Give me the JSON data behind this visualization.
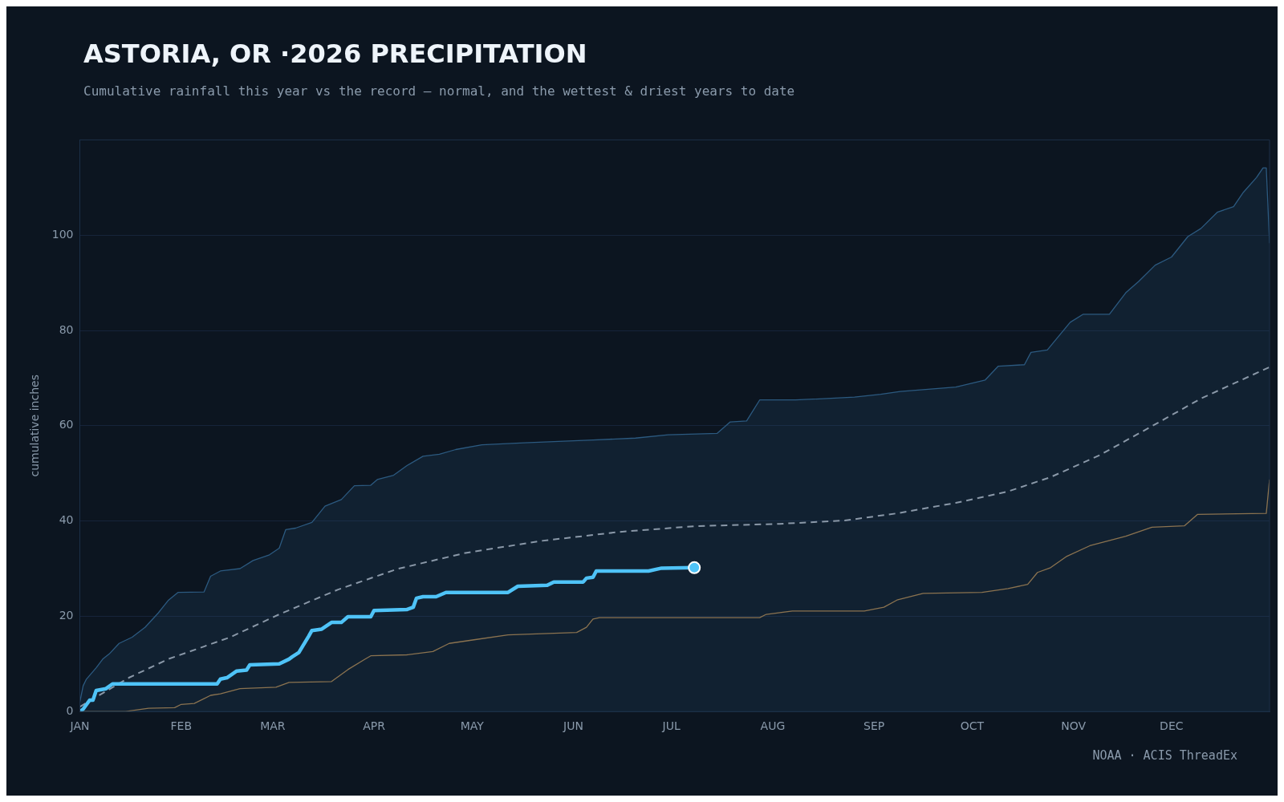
{
  "chart_data": {
    "type": "line",
    "title": "ASTORIA, OR ·2026 PRECIPITATION",
    "subtitle": "Cumulative rainfall this year vs the record — normal, and the wettest & driest years to date",
    "ylabel": "cumulative inches",
    "annotations": [
      "NOAA · ACIS ThreadEx"
    ],
    "xlim": [
      "2026-01-01",
      "2026-12-31"
    ],
    "xticks": [
      {
        "value": "2026-01-01",
        "label": "JAN"
      },
      {
        "value": "2026-02-01",
        "label": "FEB"
      },
      {
        "value": "2026-03-01",
        "label": "MAR"
      },
      {
        "value": "2026-04-01",
        "label": "APR"
      },
      {
        "value": "2026-05-01",
        "label": "MAY"
      },
      {
        "value": "2026-06-01",
        "label": "JUN"
      },
      {
        "value": "2026-07-01",
        "label": "JUL"
      },
      {
        "value": "2026-08-01",
        "label": "AUG"
      },
      {
        "value": "2026-09-01",
        "label": "SEP"
      },
      {
        "value": "2026-10-01",
        "label": "OCT"
      },
      {
        "value": "2026-11-01",
        "label": "NOV"
      },
      {
        "value": "2026-12-01",
        "label": "DEC"
      }
    ],
    "ylim": [
      0,
      120
    ],
    "yticks": [
      0,
      20,
      40,
      60,
      80,
      100
    ],
    "grid": "y",
    "legend": false,
    "marker": "none",
    "series": [
      {
        "type": "area",
        "color": "#2c5a80",
        "x": [
          "2026-01-01",
          "2026-01-02",
          "2026-01-03",
          "2026-01-06",
          "2026-01-08",
          "2026-01-10",
          "2026-01-13",
          "2026-01-17",
          "2026-01-21",
          "2026-01-25",
          "2026-01-28",
          "2026-01-31",
          "2026-02-08",
          "2026-02-10",
          "2026-02-13",
          "2026-02-19",
          "2026-02-23",
          "2026-02-28",
          "2026-03-03",
          "2026-03-05",
          "2026-03-08",
          "2026-03-13",
          "2026-03-17",
          "2026-03-22",
          "2026-03-26",
          "2026-03-31",
          "2026-04-02",
          "2026-04-07",
          "2026-04-11",
          "2026-04-16",
          "2026-04-21",
          "2026-04-26",
          "2026-05-04",
          "2026-05-17",
          "2026-06-07",
          "2026-06-20",
          "2026-06-30",
          "2026-07-15",
          "2026-07-19",
          "2026-07-24",
          "2026-07-28",
          "2026-08-08",
          "2026-08-26",
          "2026-09-03",
          "2026-09-09",
          "2026-09-26",
          "2026-10-05",
          "2026-10-09",
          "2026-10-17",
          "2026-10-19",
          "2026-10-24",
          "2026-10-31",
          "2026-11-04",
          "2026-11-12",
          "2026-11-17",
          "2026-11-21",
          "2026-11-26",
          "2026-12-01",
          "2026-12-06",
          "2026-12-10",
          "2026-12-15",
          "2026-12-20",
          "2026-12-23",
          "2026-12-27",
          "2026-12-29",
          "2026-12-30",
          "2026-12-31"
        ],
        "values": [
          2.0,
          5.4,
          6.8,
          9.2,
          11.0,
          12.1,
          14.3,
          15.6,
          17.7,
          20.7,
          23.3,
          25.0,
          25.1,
          28.4,
          29.5,
          30.0,
          31.7,
          32.9,
          34.3,
          38.2,
          38.5,
          39.7,
          43.1,
          44.5,
          47.4,
          47.5,
          48.7,
          49.6,
          51.6,
          53.6,
          54.0,
          55.0,
          56.0,
          56.4,
          57.0,
          57.4,
          58.1,
          58.4,
          60.8,
          61.0,
          65.4,
          65.4,
          66.0,
          66.6,
          67.2,
          68.1,
          69.6,
          72.5,
          72.8,
          75.4,
          75.9,
          81.7,
          83.4,
          83.4,
          87.9,
          90.3,
          93.7,
          95.4,
          99.7,
          101.4,
          104.8,
          106.0,
          109.0,
          112.1,
          114.1,
          114.1,
          98.3
        ]
      },
      {
        "type": "line",
        "color": "#8b7350",
        "x": [
          "2026-01-01",
          "2026-01-15",
          "2026-01-22",
          "2026-01-30",
          "2026-02-01",
          "2026-02-05",
          "2026-02-10",
          "2026-02-13",
          "2026-02-19",
          "2026-03-02",
          "2026-03-06",
          "2026-03-19",
          "2026-03-24",
          "2026-03-29",
          "2026-03-31",
          "2026-04-11",
          "2026-04-19",
          "2026-04-24",
          "2026-05-02",
          "2026-05-12",
          "2026-06-02",
          "2026-06-05",
          "2026-06-07",
          "2026-06-09",
          "2026-07-03",
          "2026-07-28",
          "2026-07-30",
          "2026-08-07",
          "2026-08-29",
          "2026-09-04",
          "2026-09-08",
          "2026-09-16",
          "2026-10-04",
          "2026-10-12",
          "2026-10-18",
          "2026-10-21",
          "2026-10-25",
          "2026-10-30",
          "2026-11-06",
          "2026-11-17",
          "2026-11-25",
          "2026-12-05",
          "2026-12-09",
          "2026-12-30",
          "2026-12-31"
        ],
        "values": [
          0,
          0,
          0.7,
          0.8,
          1.5,
          1.7,
          3.4,
          3.7,
          4.8,
          5.1,
          6.1,
          6.3,
          8.8,
          10.9,
          11.7,
          11.9,
          12.6,
          14.3,
          15.1,
          16.1,
          16.6,
          17.7,
          19.4,
          19.7,
          19.7,
          19.7,
          20.4,
          21.1,
          21.1,
          21.9,
          23.4,
          24.8,
          25.0,
          25.8,
          26.7,
          29.2,
          30.2,
          32.6,
          34.8,
          36.8,
          38.7,
          39.0,
          41.4,
          41.6,
          48.7
        ]
      },
      {
        "type": "line",
        "color": "#8a98a8",
        "line_style": "dashed",
        "x": [
          "2026-01-01",
          "2026-01-16",
          "2026-01-28",
          "2026-02-16",
          "2026-03-03",
          "2026-03-21",
          "2026-04-08",
          "2026-04-29",
          "2026-05-22",
          "2026-06-15",
          "2026-07-08",
          "2026-08-03",
          "2026-08-23",
          "2026-09-08",
          "2026-09-26",
          "2026-10-12",
          "2026-10-25",
          "2026-11-09",
          "2026-11-25",
          "2026-12-10",
          "2026-12-31"
        ],
        "values": [
          1,
          7.1,
          11.0,
          15.6,
          20.4,
          25.6,
          29.9,
          33.3,
          35.8,
          37.7,
          38.9,
          39.4,
          40.1,
          41.6,
          43.8,
          46.2,
          49.2,
          53.8,
          59.9,
          65.7,
          72.3
        ]
      },
      {
        "type": "line",
        "color": "#4fc3f7",
        "x": [
          "2026-01-01",
          "2026-01-02",
          "2026-01-04",
          "2026-01-05",
          "2026-01-06",
          "2026-01-09",
          "2026-01-11",
          "2026-02-12",
          "2026-02-13",
          "2026-02-15",
          "2026-02-18",
          "2026-02-21",
          "2026-02-22",
          "2026-03-03",
          "2026-03-06",
          "2026-03-07",
          "2026-03-09",
          "2026-03-12",
          "2026-03-13",
          "2026-03-16",
          "2026-03-19",
          "2026-03-22",
          "2026-03-24",
          "2026-03-31",
          "2026-04-01",
          "2026-04-11",
          "2026-04-13",
          "2026-04-14",
          "2026-04-16",
          "2026-04-20",
          "2026-04-23",
          "2026-05-12",
          "2026-05-15",
          "2026-05-24",
          "2026-05-26",
          "2026-06-04",
          "2026-06-05",
          "2026-06-07",
          "2026-06-08",
          "2026-06-24",
          "2026-06-28",
          "2026-07-08"
        ],
        "values": [
          0,
          0.5,
          2.4,
          2.4,
          4.4,
          4.8,
          5.8,
          5.8,
          6.8,
          7.1,
          8.5,
          8.7,
          9.8,
          10.0,
          11.0,
          11.5,
          12.4,
          15.8,
          17.0,
          17.3,
          18.7,
          18.7,
          19.9,
          19.9,
          21.2,
          21.4,
          21.9,
          23.8,
          24.1,
          24.1,
          25.0,
          25.0,
          26.3,
          26.5,
          27.2,
          27.2,
          28.0,
          28.2,
          29.5,
          29.5,
          30.1,
          30.2
        ]
      },
      {
        "type": "scatter",
        "color": "#4fc3f7",
        "marker": "circle",
        "x": [
          "2026-07-08"
        ],
        "values": [
          30.2
        ]
      }
    ]
  }
}
